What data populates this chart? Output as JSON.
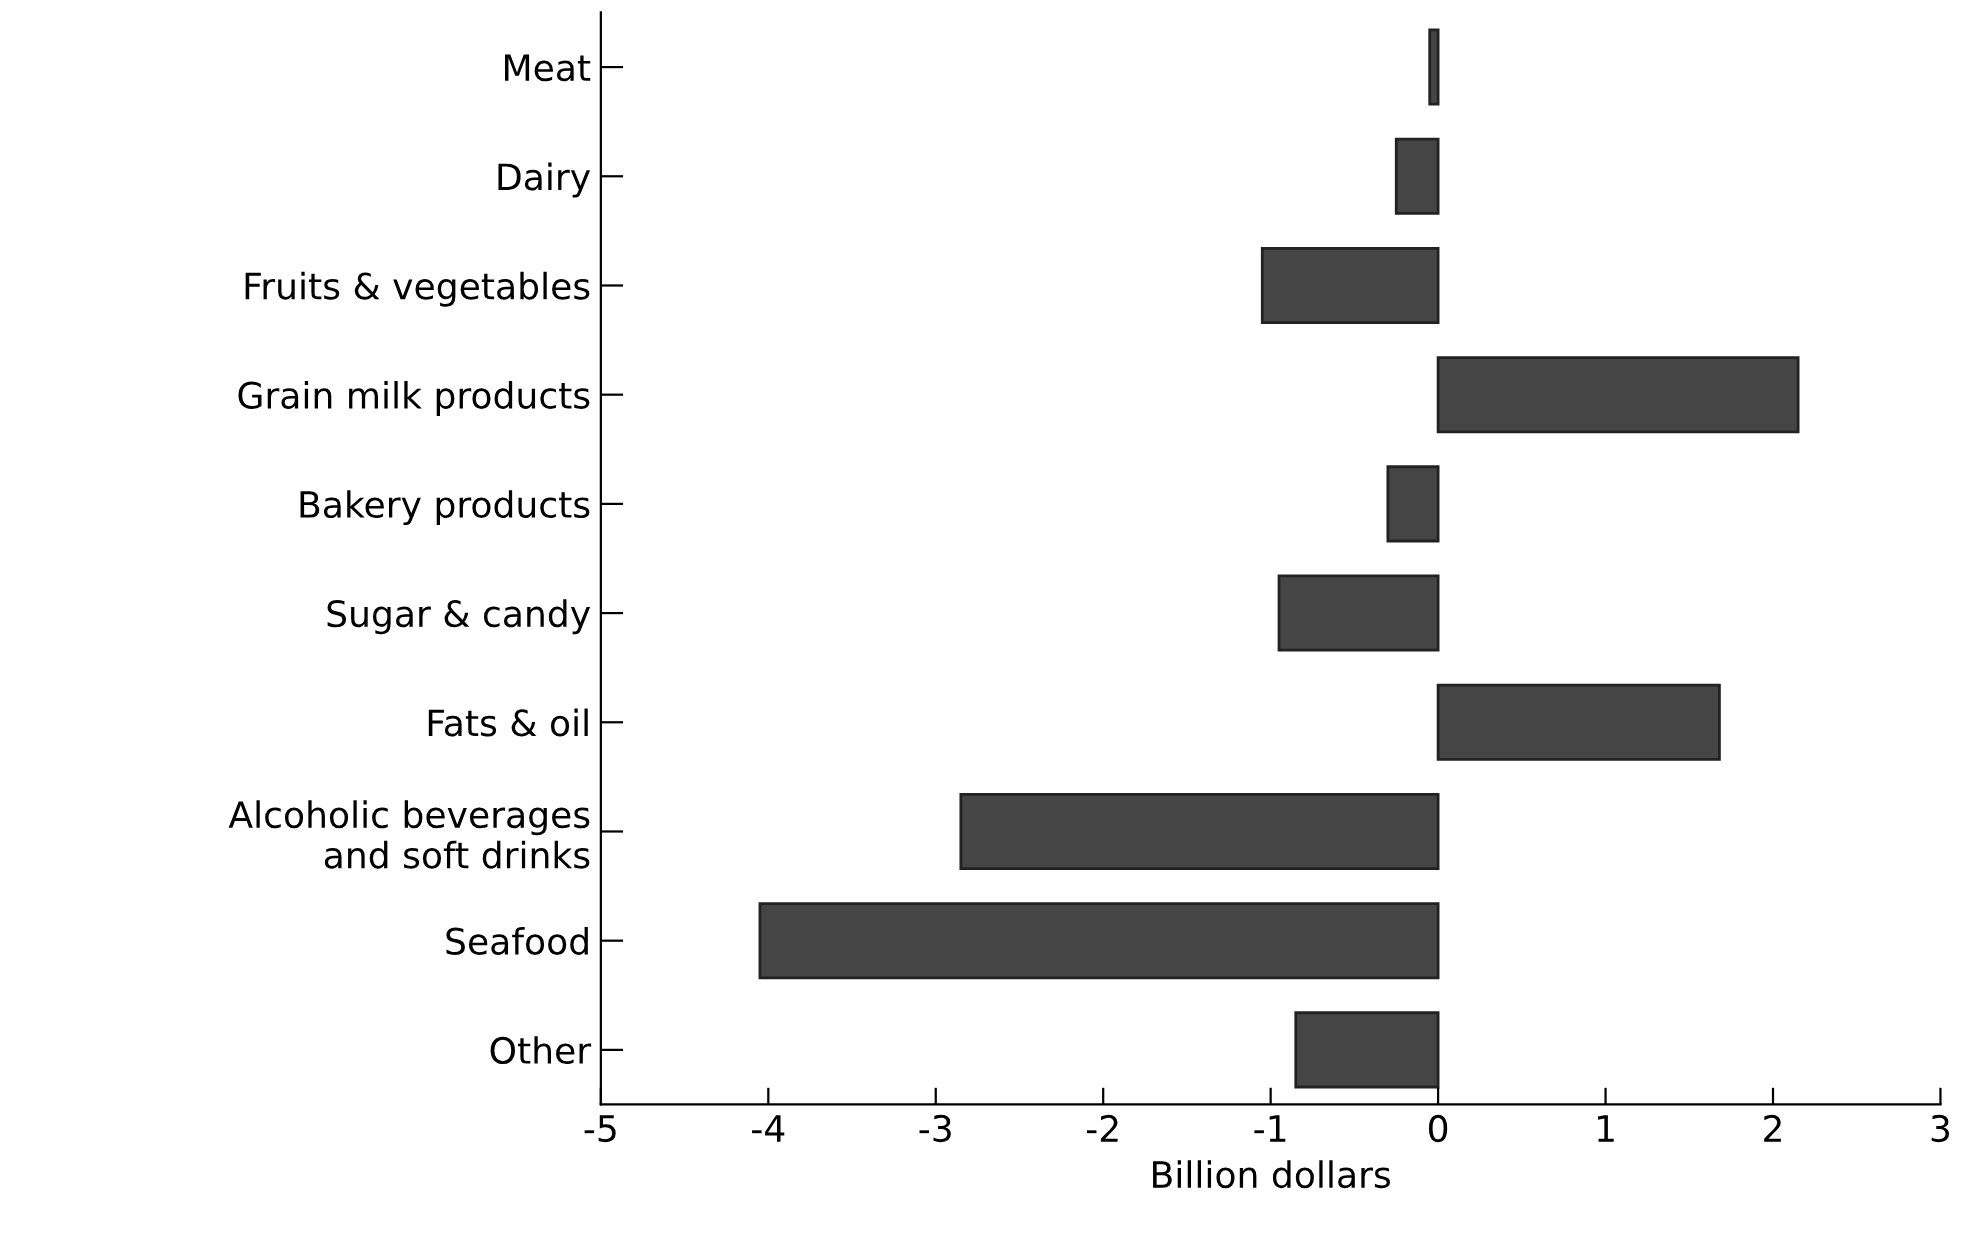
{
  "chart_data": {
    "type": "bar",
    "orientation": "horizontal",
    "xlabel": "Billion dollars",
    "categories": [
      "Meat",
      "Dairy",
      "Fruits & vegetables",
      "Grain milk products",
      "Bakery products",
      "Sugar & candy",
      "Fats & oil",
      "Alcoholic beverages\nand soft drinks",
      "Seafood",
      "Other"
    ],
    "values": [
      -0.05,
      -0.25,
      -1.05,
      2.15,
      -0.3,
      -0.95,
      1.68,
      -2.85,
      -4.05,
      -0.85
    ],
    "color": "#454545",
    "xlim": [
      -5,
      3
    ],
    "xticks": [
      -5,
      -4,
      -3,
      -2,
      -1,
      0,
      1,
      2,
      3
    ],
    "grid": false,
    "legend": false
  }
}
